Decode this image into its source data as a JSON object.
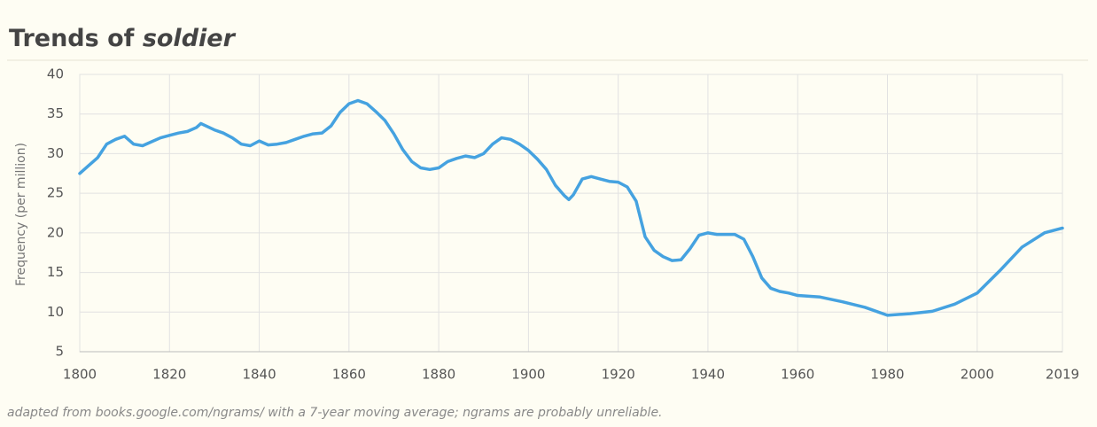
{
  "chart_data": {
    "type": "line",
    "title": "Trends of",
    "keyword": "soldier",
    "y_label": "Frequency (per million)",
    "note": "adapted from books.google.com/ngrams/ with a 7-year moving average; ngrams are probably unreliable.",
    "xlim": [
      1800,
      2019
    ],
    "xticks": [
      1800,
      1820,
      1840,
      1860,
      1880,
      1900,
      1920,
      1940,
      1960,
      1980,
      2000,
      2019
    ],
    "ylim": [
      5,
      40
    ],
    "yticks": [
      5,
      10,
      15,
      20,
      25,
      30,
      35,
      40
    ],
    "grid": true,
    "series": [
      {
        "name": "soldier",
        "color": "#45a2e0",
        "x": [
          1800,
          1802,
          1804,
          1806,
          1808,
          1810,
          1812,
          1814,
          1816,
          1818,
          1820,
          1822,
          1824,
          1826,
          1827,
          1830,
          1832,
          1834,
          1836,
          1838,
          1840,
          1842,
          1844,
          1846,
          1848,
          1850,
          1852,
          1854,
          1856,
          1858,
          1860,
          1862,
          1864,
          1866,
          1868,
          1870,
          1872,
          1874,
          1876,
          1878,
          1880,
          1882,
          1884,
          1886,
          1888,
          1890,
          1892,
          1894,
          1896,
          1898,
          1900,
          1902,
          1904,
          1906,
          1908,
          1909,
          1910,
          1912,
          1914,
          1916,
          1918,
          1920,
          1922,
          1924,
          1926,
          1928,
          1930,
          1932,
          1934,
          1936,
          1938,
          1940,
          1942,
          1944,
          1946,
          1948,
          1950,
          1952,
          1954,
          1956,
          1958,
          1960,
          1965,
          1970,
          1975,
          1980,
          1985,
          1990,
          1995,
          2000,
          2005,
          2010,
          2015,
          2019
        ],
        "values": [
          27.5,
          28.5,
          29.5,
          31.2,
          31.8,
          32.2,
          31.2,
          31.0,
          31.5,
          32.0,
          32.3,
          32.6,
          32.8,
          33.3,
          33.8,
          33.0,
          32.6,
          32.0,
          31.2,
          31.0,
          31.6,
          31.1,
          31.2,
          31.4,
          31.8,
          32.2,
          32.5,
          32.6,
          33.5,
          35.2,
          36.3,
          36.7,
          36.3,
          35.3,
          34.2,
          32.5,
          30.5,
          29.0,
          28.2,
          28.0,
          28.2,
          29.0,
          29.4,
          29.7,
          29.5,
          30.0,
          31.2,
          32.0,
          31.8,
          31.2,
          30.4,
          29.3,
          28.0,
          26.0,
          24.7,
          24.2,
          24.8,
          26.8,
          27.1,
          26.8,
          26.5,
          26.4,
          25.8,
          24.0,
          19.5,
          17.8,
          17.0,
          16.5,
          16.6,
          18.0,
          19.7,
          20.0,
          19.8,
          19.8,
          19.8,
          19.2,
          17.0,
          14.3,
          13.0,
          12.6,
          12.4,
          12.1,
          11.9,
          11.3,
          10.6,
          9.6,
          9.8,
          10.1,
          11.0,
          12.4,
          15.2,
          18.2,
          20.0,
          20.6
        ]
      }
    ]
  }
}
